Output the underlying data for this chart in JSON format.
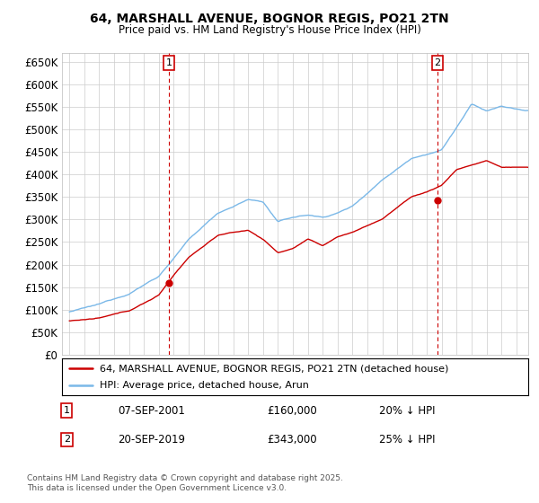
{
  "title": "64, MARSHALL AVENUE, BOGNOR REGIS, PO21 2TN",
  "subtitle": "Price paid vs. HM Land Registry's House Price Index (HPI)",
  "ytick_labels": [
    "£0",
    "£50K",
    "£100K",
    "£150K",
    "£200K",
    "£250K",
    "£300K",
    "£350K",
    "£400K",
    "£450K",
    "£500K",
    "£550K",
    "£600K",
    "£650K"
  ],
  "ytick_values": [
    0,
    50000,
    100000,
    150000,
    200000,
    250000,
    300000,
    350000,
    400000,
    450000,
    500000,
    550000,
    600000,
    650000
  ],
  "hpi_color": "#7ab8e8",
  "price_color": "#cc0000",
  "sale1_year": 2001.71,
  "sale1_price": 160000,
  "sale2_year": 2019.71,
  "sale2_price": 343000,
  "marker1_label": "07-SEP-2001",
  "marker1_price": "£160,000",
  "marker1_hpi": "20% ↓ HPI",
  "marker2_label": "20-SEP-2019",
  "marker2_price": "£343,000",
  "marker2_hpi": "25% ↓ HPI",
  "legend1": "64, MARSHALL AVENUE, BOGNOR REGIS, PO21 2TN (detached house)",
  "legend2": "HPI: Average price, detached house, Arun",
  "footer": "Contains HM Land Registry data © Crown copyright and database right 2025.\nThis data is licensed under the Open Government Licence v3.0.",
  "background_color": "#ffffff",
  "grid_color": "#cccccc",
  "hpi_anchors_y": [
    1995,
    1997,
    1999,
    2001,
    2003,
    2005,
    2007,
    2008,
    2009,
    2010,
    2011,
    2012,
    2013,
    2014,
    2015,
    2016,
    2017,
    2018,
    2019,
    2020,
    2021,
    2022,
    2023,
    2024,
    2025.5
  ],
  "hpi_anchors_v": [
    95000,
    110000,
    135000,
    175000,
    255000,
    315000,
    345000,
    340000,
    295000,
    305000,
    310000,
    305000,
    315000,
    330000,
    360000,
    390000,
    415000,
    440000,
    450000,
    460000,
    510000,
    560000,
    545000,
    555000,
    545000
  ],
  "price_anchors_y": [
    1995,
    1997,
    1999,
    2001,
    2002,
    2003,
    2004,
    2005,
    2006,
    2007,
    2008,
    2009,
    2010,
    2011,
    2012,
    2013,
    2014,
    2015,
    2016,
    2017,
    2018,
    2019,
    2020,
    2021,
    2022,
    2023,
    2024,
    2025.5
  ],
  "price_anchors_v": [
    75000,
    80000,
    95000,
    130000,
    175000,
    215000,
    240000,
    265000,
    270000,
    275000,
    255000,
    225000,
    235000,
    255000,
    240000,
    260000,
    270000,
    285000,
    300000,
    325000,
    350000,
    360000,
    375000,
    410000,
    420000,
    430000,
    415000,
    415000
  ],
  "ylim_max": 670000,
  "xlim_min": 1994.5,
  "xlim_max": 2025.8
}
